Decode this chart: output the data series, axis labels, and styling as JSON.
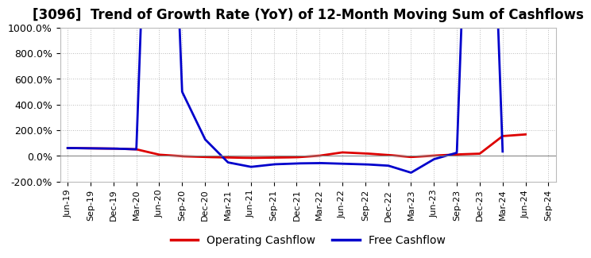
{
  "title": "[3096]  Trend of Growth Rate (YoY) of 12-Month Moving Sum of Cashflows",
  "title_fontsize": 12,
  "background_color": "#ffffff",
  "plot_bg_color": "#ffffff",
  "grid_color": "#aaaaaa",
  "ylim": [
    -200,
    1000
  ],
  "yticks": [
    -200,
    0,
    200,
    400,
    600,
    800,
    1000
  ],
  "legend_labels": [
    "Operating Cashflow",
    "Free Cashflow"
  ],
  "legend_colors": [
    "#dd0000",
    "#0000cc"
  ],
  "operating_cashflow_x": [
    0,
    3,
    6,
    9,
    12,
    15,
    18,
    21,
    24,
    27,
    30,
    33,
    36,
    39,
    42,
    45,
    48,
    51,
    54,
    57,
    60
  ],
  "operating_cashflow_y": [
    62,
    60,
    58,
    52,
    10,
    -2,
    -8,
    -12,
    -15,
    -13,
    -10,
    2,
    28,
    20,
    8,
    -8,
    3,
    12,
    18,
    155,
    168
  ],
  "free_cashflow_x": [
    0,
    3,
    6,
    9,
    12,
    15,
    18,
    21,
    24,
    27,
    30,
    33,
    36,
    39,
    42,
    45,
    48,
    51,
    54,
    57
  ],
  "free_cashflow_y": [
    62,
    60,
    58,
    52,
    5000,
    500,
    130,
    -50,
    -85,
    -65,
    -58,
    -55,
    -60,
    -65,
    -75,
    -130,
    -25,
    25,
    5000,
    35
  ],
  "xtick_positions": [
    0,
    3,
    6,
    9,
    12,
    15,
    18,
    21,
    24,
    27,
    30,
    33,
    36,
    39,
    42,
    45,
    48,
    51,
    54,
    57,
    60,
    63
  ],
  "xtick_labels": [
    "Jun-19",
    "Sep-19",
    "Dec-19",
    "Mar-20",
    "Jun-20",
    "Sep-20",
    "Dec-20",
    "Mar-21",
    "Jun-21",
    "Sep-21",
    "Dec-21",
    "Mar-22",
    "Jun-22",
    "Sep-22",
    "Dec-22",
    "Mar-23",
    "Jun-23",
    "Sep-23",
    "Dec-23",
    "Mar-24",
    "Jun-24",
    "Sep-24"
  ],
  "line_width": 2.0
}
